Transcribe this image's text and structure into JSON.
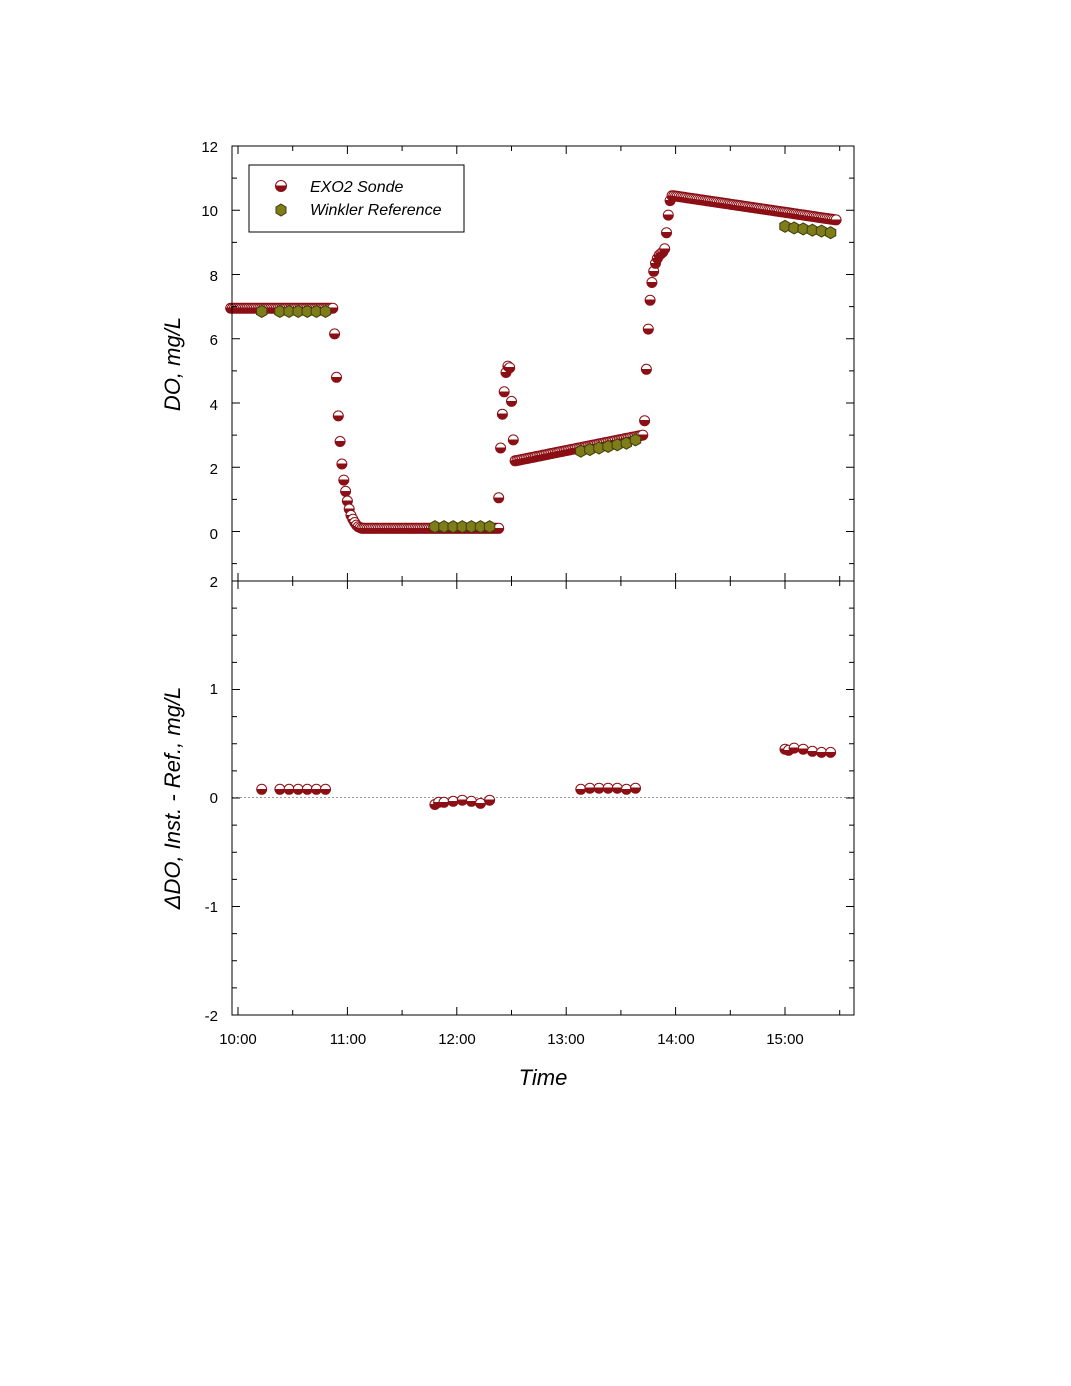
{
  "colors": {
    "sonde": "#8b0f14",
    "sonde_light": "#ffffff",
    "winkler": "#7f7d1a",
    "axis": "#000000",
    "zero_line": "#999999"
  },
  "chart_data": [
    {
      "type": "scatter",
      "ylabel": "DO, mg/L",
      "xlabel": "",
      "xlim": [
        "09:56",
        "15:40"
      ],
      "ylim": [
        -1.5,
        12
      ],
      "yticks": [
        "12",
        "10",
        "8",
        "6",
        "4",
        "2",
        "0"
      ],
      "legend": {
        "placement": "top-left",
        "entries": [
          "EXO2 Sonde",
          "Winkler Reference"
        ]
      },
      "series": [
        {
          "name": "EXO2 Sonde",
          "marker": "half-filled-circle",
          "segments": [
            {
              "kind": "line",
              "x0": "09:56",
              "x1": "10:52",
              "y0": 6.95,
              "y1": 6.95,
              "step_min": 1
            },
            {
              "kind": "points",
              "points": [
                [
                  "10:53",
                  6.15
                ],
                [
                  "10:54",
                  4.8
                ],
                [
                  "10:55",
                  3.6
                ],
                [
                  "10:56",
                  2.8
                ],
                [
                  "10:57",
                  2.1
                ],
                [
                  "10:58",
                  1.6
                ],
                [
                  "10:59",
                  1.25
                ],
                [
                  "11:00",
                  0.95
                ],
                [
                  "11:01",
                  0.7
                ],
                [
                  "11:02",
                  0.5
                ],
                [
                  "11:03",
                  0.38
                ],
                [
                  "11:04",
                  0.28
                ],
                [
                  "11:05",
                  0.2
                ],
                [
                  "11:06",
                  0.15
                ],
                [
                  "11:07",
                  0.12
                ]
              ]
            },
            {
              "kind": "line",
              "x0": "11:08",
              "x1": "12:23",
              "y0": 0.1,
              "y1": 0.1,
              "step_min": 1
            },
            {
              "kind": "points",
              "points": [
                [
                  "12:23",
                  1.05
                ],
                [
                  "12:24",
                  2.6
                ],
                [
                  "12:25",
                  3.65
                ],
                [
                  "12:26",
                  4.35
                ],
                [
                  "12:27",
                  4.95
                ],
                [
                  "12:28",
                  5.15
                ],
                [
                  "12:29",
                  5.1
                ],
                [
                  "12:30",
                  4.05
                ],
                [
                  "12:31",
                  2.85
                ]
              ]
            },
            {
              "kind": "line",
              "x0": "12:32",
              "x1": "13:42",
              "y0": 2.2,
              "y1": 3.0,
              "step_min": 1
            },
            {
              "kind": "points",
              "points": [
                [
                  "13:43",
                  3.45
                ],
                [
                  "13:44",
                  5.05
                ],
                [
                  "13:45",
                  6.3
                ],
                [
                  "13:46",
                  7.2
                ],
                [
                  "13:47",
                  7.75
                ],
                [
                  "13:48",
                  8.1
                ],
                [
                  "13:49",
                  8.35
                ],
                [
                  "13:50",
                  8.5
                ],
                [
                  "13:51",
                  8.6
                ],
                [
                  "13:52",
                  8.65
                ],
                [
                  "13:53",
                  8.7
                ],
                [
                  "13:54",
                  8.8
                ],
                [
                  "13:55",
                  9.3
                ],
                [
                  "13:56",
                  9.85
                ],
                [
                  "13:57",
                  10.3
                ],
                [
                  "13:58",
                  10.45
                ]
              ]
            },
            {
              "kind": "line",
              "x0": "13:59",
              "x1": "15:28",
              "y0": 10.45,
              "y1": 9.7,
              "step_min": 1
            }
          ]
        },
        {
          "name": "Winkler Reference",
          "marker": "hexagon",
          "points": [
            [
              "10:13",
              6.85
            ],
            [
              "10:23",
              6.85
            ],
            [
              "10:28",
              6.85
            ],
            [
              "10:33",
              6.85
            ],
            [
              "10:38",
              6.85
            ],
            [
              "10:43",
              6.85
            ],
            [
              "10:48",
              6.85
            ],
            [
              "11:48",
              0.15
            ],
            [
              "11:53",
              0.15
            ],
            [
              "11:58",
              0.15
            ],
            [
              "12:03",
              0.15
            ],
            [
              "12:08",
              0.15
            ],
            [
              "12:13",
              0.15
            ],
            [
              "12:18",
              0.15
            ],
            [
              "13:08",
              2.5
            ],
            [
              "13:13",
              2.55
            ],
            [
              "13:18",
              2.6
            ],
            [
              "13:23",
              2.65
            ],
            [
              "13:28",
              2.7
            ],
            [
              "13:33",
              2.75
            ],
            [
              "13:38",
              2.85
            ],
            [
              "15:00",
              9.5
            ],
            [
              "15:05",
              9.45
            ],
            [
              "15:10",
              9.42
            ],
            [
              "15:15",
              9.38
            ],
            [
              "15:20",
              9.35
            ],
            [
              "15:25",
              9.3
            ]
          ]
        }
      ]
    },
    {
      "type": "scatter",
      "ylabel": "ΔDO, Inst. - Ref., mg/L",
      "xlabel": "Time",
      "xlim": [
        "09:56",
        "15:40"
      ],
      "ylim": [
        -2,
        2
      ],
      "yticks": [
        "2",
        "1",
        "0",
        "-1",
        "-2"
      ],
      "xticks": [
        "10:00",
        "11:00",
        "12:00",
        "13:00",
        "14:00",
        "15:00"
      ],
      "reference_line": 0,
      "series": [
        {
          "name": "EXO2 Sonde",
          "marker": "half-filled-circle",
          "points": [
            [
              "10:13",
              0.08
            ],
            [
              "10:23",
              0.08
            ],
            [
              "10:28",
              0.08
            ],
            [
              "10:33",
              0.08
            ],
            [
              "10:38",
              0.08
            ],
            [
              "10:43",
              0.08
            ],
            [
              "10:48",
              0.08
            ],
            [
              "11:48",
              -0.06
            ],
            [
              "11:50",
              -0.04
            ],
            [
              "11:53",
              -0.04
            ],
            [
              "11:58",
              -0.03
            ],
            [
              "12:03",
              -0.02
            ],
            [
              "12:08",
              -0.03
            ],
            [
              "12:13",
              -0.05
            ],
            [
              "12:18",
              -0.02
            ],
            [
              "13:08",
              0.08
            ],
            [
              "13:13",
              0.09
            ],
            [
              "13:18",
              0.09
            ],
            [
              "13:23",
              0.09
            ],
            [
              "13:28",
              0.09
            ],
            [
              "13:33",
              0.08
            ],
            [
              "13:38",
              0.09
            ],
            [
              "15:00",
              0.45
            ],
            [
              "15:02",
              0.44
            ],
            [
              "15:05",
              0.46
            ],
            [
              "15:10",
              0.45
            ],
            [
              "15:15",
              0.43
            ],
            [
              "15:20",
              0.42
            ],
            [
              "15:25",
              0.42
            ]
          ]
        }
      ]
    }
  ]
}
